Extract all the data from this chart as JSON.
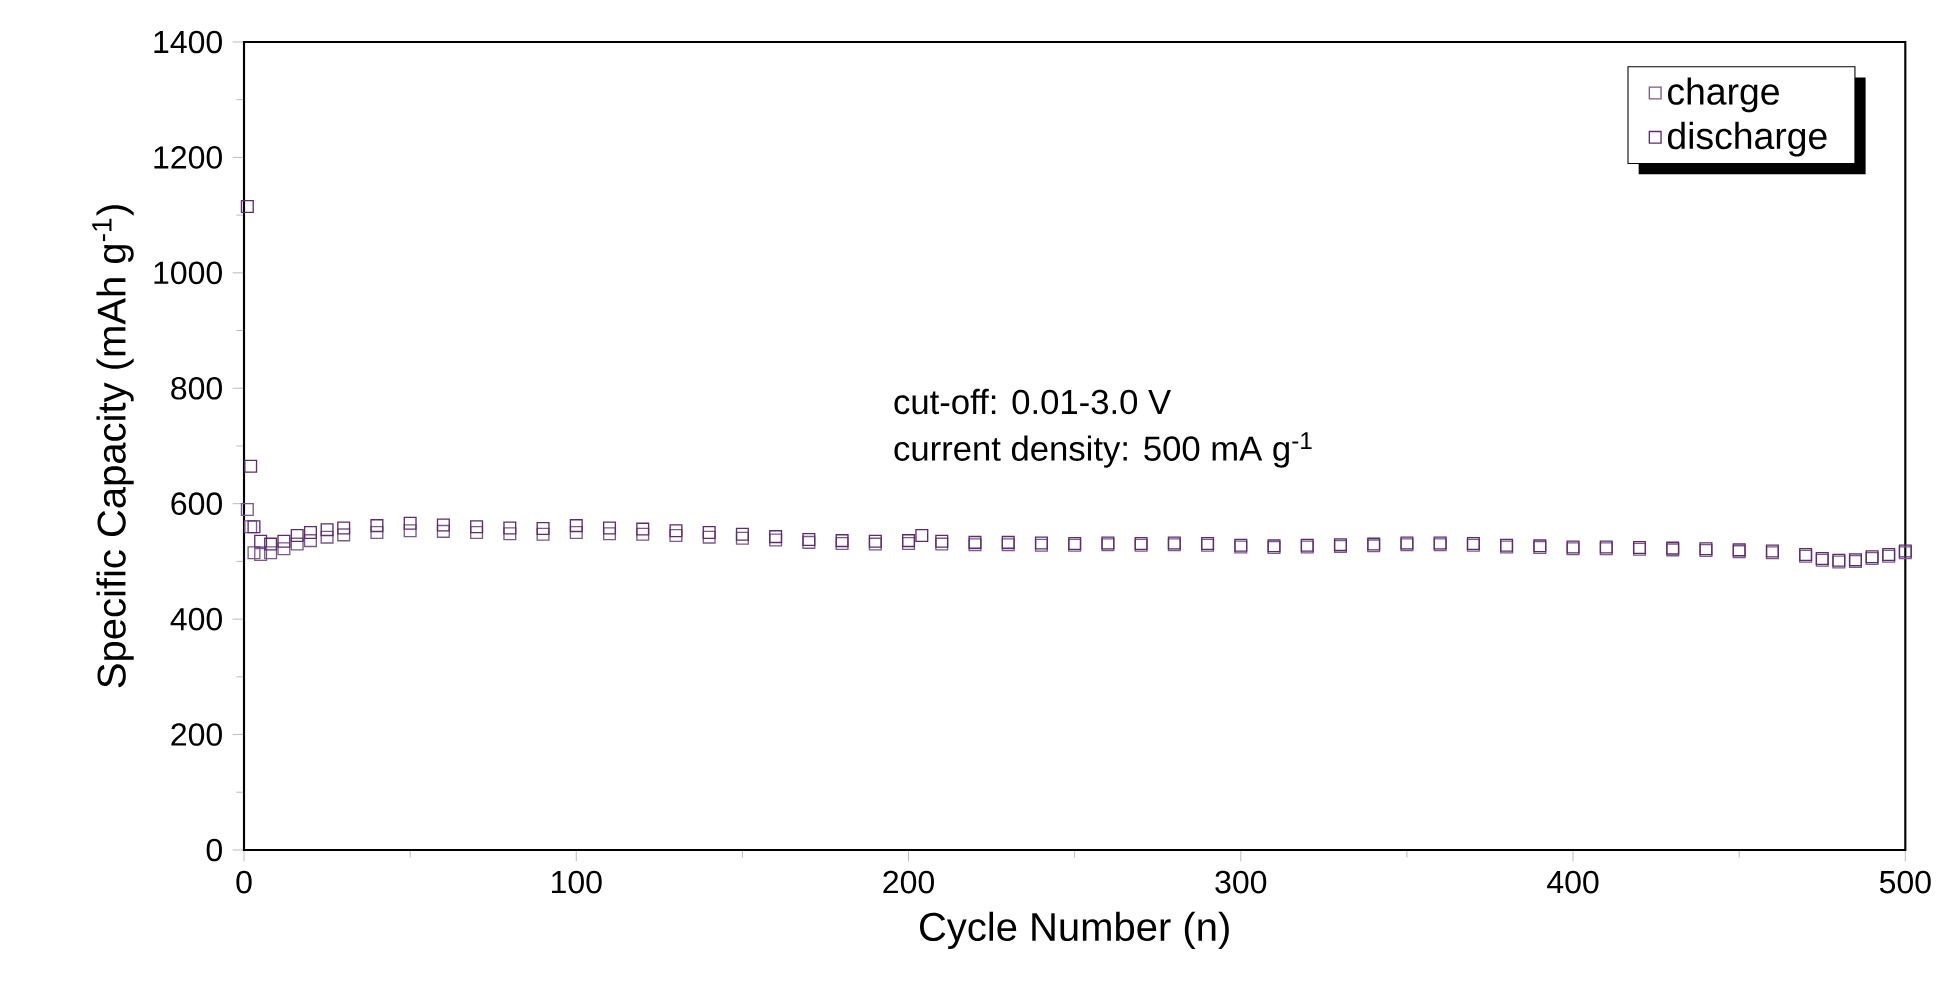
{
  "chart_data": {
    "type": "scatter",
    "xlabel": "Cycle Number (n)",
    "ylabel": "Specific Capacity (mAh g$^{-1}$)",
    "xlim": [
      0,
      500
    ],
    "ylim": [
      0,
      1400
    ],
    "xticks": [
      0,
      100,
      200,
      300,
      400,
      500
    ],
    "yticks": [
      0,
      200,
      400,
      600,
      800,
      1000,
      1200,
      1400
    ],
    "marker": "square",
    "legend": "top right",
    "grid": false,
    "annotations": [
      "cut-off: 0.01-3.0 V",
      "current density: 500 mA g$^{-1}$"
    ],
    "series": [
      {
        "name": "charge",
        "color": "#7a5a8a",
        "x": [
          1,
          2,
          3,
          5,
          8,
          12,
          16,
          20,
          25,
          30,
          40,
          50,
          60,
          70,
          80,
          90,
          100,
          110,
          120,
          130,
          140,
          150,
          160,
          170,
          180,
          190,
          200,
          210,
          220,
          230,
          240,
          250,
          260,
          270,
          280,
          290,
          300,
          310,
          320,
          330,
          340,
          350,
          360,
          370,
          380,
          390,
          400,
          410,
          420,
          430,
          440,
          450,
          460,
          470,
          475,
          480,
          485,
          490,
          495,
          500
        ],
        "values": [
          590,
          560,
          515,
          512,
          515,
          522,
          530,
          536,
          542,
          546,
          550,
          553,
          552,
          550,
          548,
          547,
          550,
          548,
          547,
          545,
          542,
          540,
          537,
          533,
          531,
          530,
          531,
          530,
          529,
          529,
          528,
          528,
          529,
          528,
          529,
          528,
          525,
          524,
          525,
          526,
          527,
          529,
          529,
          528,
          525,
          524,
          522,
          522,
          521,
          520,
          519,
          517,
          515,
          509,
          502,
          499,
          500,
          505,
          509,
          515
        ]
      },
      {
        "name": "discharge",
        "color": "#5b2c6f",
        "x": [
          1,
          2,
          3,
          5,
          8,
          12,
          16,
          20,
          25,
          30,
          40,
          50,
          60,
          70,
          80,
          90,
          100,
          110,
          120,
          130,
          140,
          150,
          160,
          170,
          180,
          190,
          200,
          204,
          210,
          220,
          230,
          240,
          250,
          260,
          270,
          280,
          290,
          300,
          310,
          320,
          330,
          340,
          350,
          360,
          370,
          380,
          390,
          400,
          410,
          420,
          430,
          440,
          450,
          460,
          470,
          475,
          480,
          485,
          490,
          495,
          500
        ],
        "values": [
          1115,
          665,
          560,
          535,
          530,
          535,
          545,
          550,
          555,
          558,
          562,
          566,
          563,
          560,
          558,
          557,
          562,
          558,
          556,
          553,
          550,
          547,
          543,
          538,
          536,
          535,
          536,
          545,
          535,
          533,
          533,
          532,
          531,
          532,
          531,
          532,
          531,
          528,
          527,
          528,
          529,
          530,
          532,
          532,
          531,
          528,
          527,
          525,
          525,
          524,
          523,
          522,
          520,
          518,
          512,
          505,
          502,
          503,
          508,
          512,
          518
        ]
      }
    ]
  }
}
